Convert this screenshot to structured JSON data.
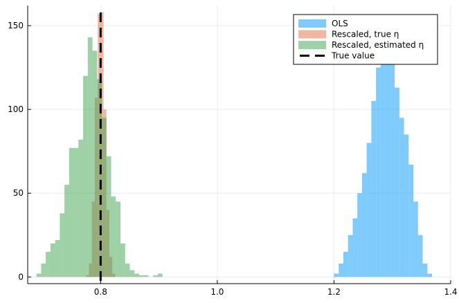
{
  "chart_data": {
    "type": "histogram",
    "title": "",
    "xlabel": "",
    "ylabel": "",
    "xlim": [
      0.675,
      1.4
    ],
    "ylim": [
      -4,
      162
    ],
    "grid": true,
    "legend_position": "top-right",
    "x_ticks": [
      {
        "value": 0.8,
        "label": "0.8"
      },
      {
        "value": 1.0,
        "label": "1.0"
      },
      {
        "value": 1.2,
        "label": "1.2"
      },
      {
        "value": 1.4,
        "label": "1.4"
      }
    ],
    "y_ticks": [
      {
        "value": 0,
        "label": "0"
      },
      {
        "value": 50,
        "label": "50"
      },
      {
        "value": 100,
        "label": "100"
      },
      {
        "value": 150,
        "label": "150"
      }
    ],
    "series": [
      {
        "name": "OLS",
        "kind": "histogram",
        "color": "#009AFA",
        "opacity": 0.5,
        "bin_width": 0.008,
        "bins_start": 1.2,
        "counts": [
          2,
          8,
          15,
          25,
          35,
          50,
          62,
          80,
          105,
          125,
          147,
          155,
          137,
          113,
          95,
          85,
          67,
          45,
          25,
          8,
          2
        ]
      },
      {
        "name": "Rescaled, true η",
        "kind": "histogram",
        "color": "#E36F47",
        "opacity": 0.5,
        "bin_width": 0.005,
        "bins_start": 0.775,
        "counts": [
          1,
          8,
          45,
          107,
          157,
          158,
          100,
          40,
          12,
          2
        ]
      },
      {
        "name": "Rescaled, estimated η",
        "kind": "histogram",
        "color": "#3DA44D",
        "opacity": 0.5,
        "bin_width": 0.008,
        "bins_start": 0.69,
        "counts": [
          2,
          8,
          15,
          20,
          22,
          38,
          55,
          77,
          77,
          82,
          120,
          143,
          135,
          118,
          95,
          72,
          48,
          45,
          20,
          8,
          4,
          2,
          1,
          1,
          0,
          1,
          2
        ]
      },
      {
        "name": "True value",
        "kind": "vline",
        "color": "#000000",
        "x": 0.8
      }
    ]
  }
}
